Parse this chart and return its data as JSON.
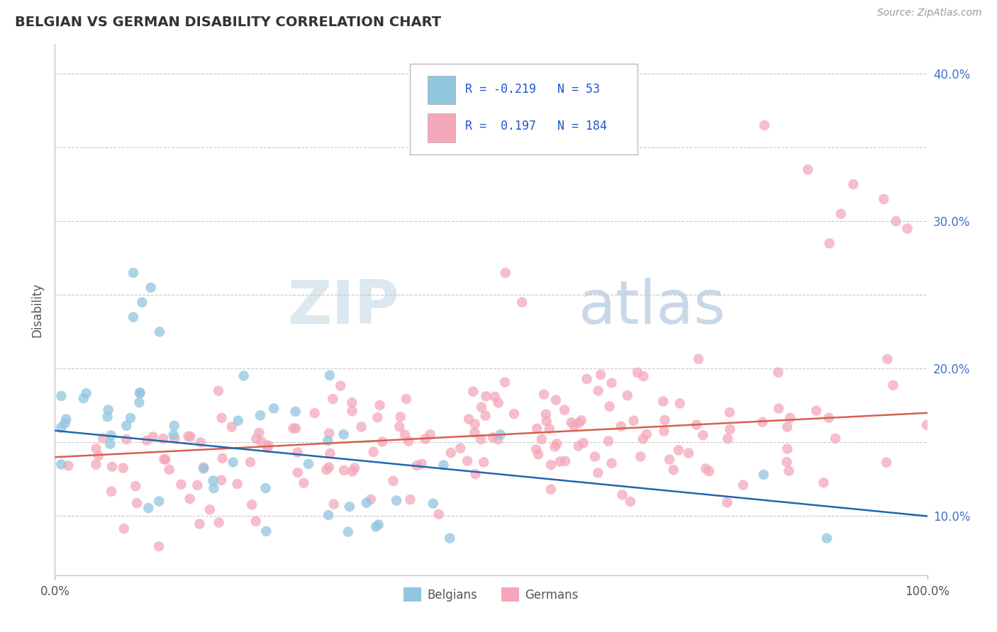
{
  "title": "BELGIAN VS GERMAN DISABILITY CORRELATION CHART",
  "source": "Source: ZipAtlas.com",
  "ylabel": "Disability",
  "xlim": [
    0.0,
    1.0
  ],
  "ylim": [
    0.06,
    0.42
  ],
  "blue_R": "-0.219",
  "blue_N": "53",
  "pink_R": "0.197",
  "pink_N": "184",
  "blue_color": "#92c5de",
  "pink_color": "#f4a7b9",
  "blue_line_color": "#2166ac",
  "pink_line_color": "#d6604d",
  "legend_label_blue": "Belgians",
  "legend_label_pink": "Germans",
  "watermark_zip": "ZIP",
  "watermark_atlas": "atlas",
  "y_tick_vals": [
    0.1,
    0.15,
    0.2,
    0.25,
    0.3,
    0.35,
    0.4
  ],
  "y_tick_labels_right": [
    "10.0%",
    "",
    "20.0%",
    "",
    "30.0%",
    "",
    "40.0%"
  ],
  "blue_line_x0": 0.0,
  "blue_line_y0": 0.158,
  "blue_line_x1": 1.0,
  "blue_line_y1": 0.1,
  "pink_line_x0": 0.0,
  "pink_line_y0": 0.14,
  "pink_line_x1": 1.0,
  "pink_line_y1": 0.17
}
